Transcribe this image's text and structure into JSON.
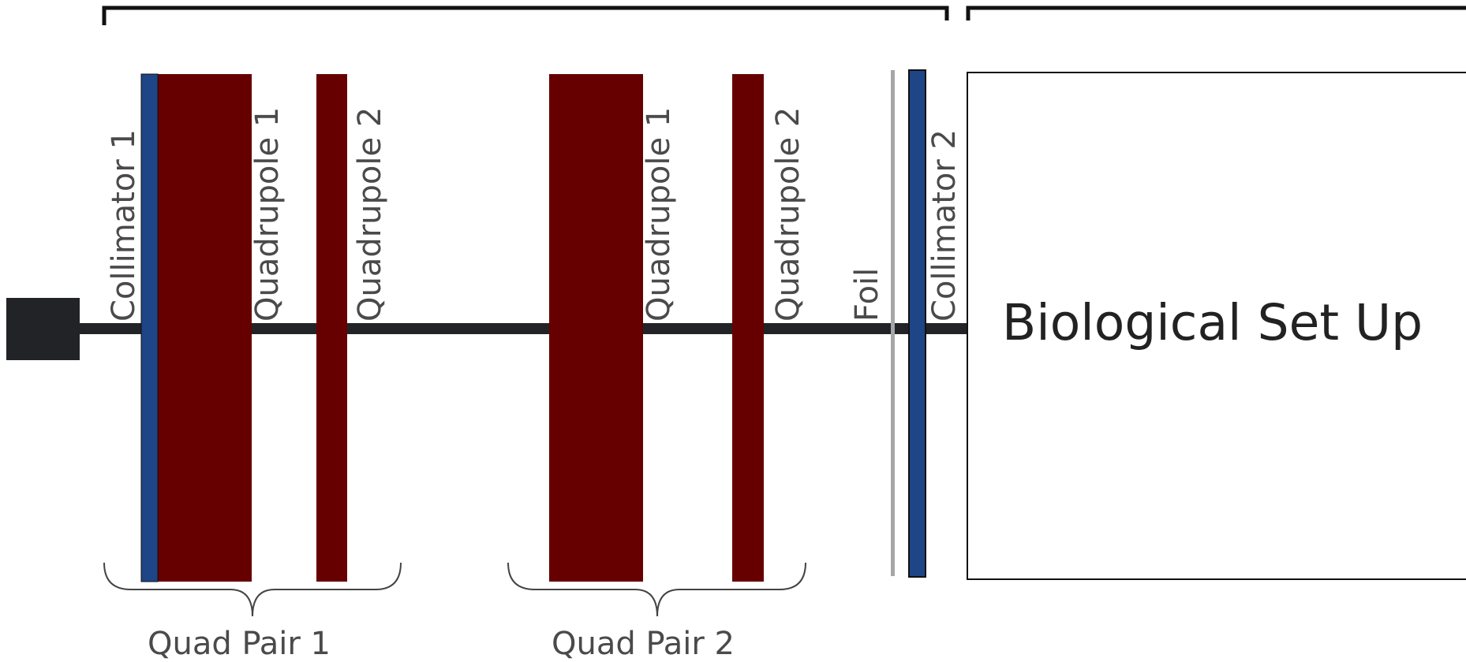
{
  "labels": {
    "collimator_1": "Collimator 1",
    "quad_pair_1_quadrupole_1": "Quadrupole 1",
    "quad_pair_1_quadrupole_2": "Quadrupole 2",
    "quad_pair_2_quadrupole_1": "Quadrupole 1",
    "quad_pair_2_quadrupole_2": "Quadrupole 2",
    "foil": "Foil",
    "collimator_2": "Collimator 2",
    "biological_setup": "Biological Set Up",
    "quad_pair_1": "Quad Pair 1",
    "quad_pair_2": "Quad Pair 2"
  },
  "colors": {
    "beamline": "#222327",
    "source": "#222327",
    "collimator": "#1e4585",
    "quadrupole": "#660000",
    "foil": "#a6a6a6",
    "text": "#4a4a4a",
    "outline": "#111111"
  }
}
